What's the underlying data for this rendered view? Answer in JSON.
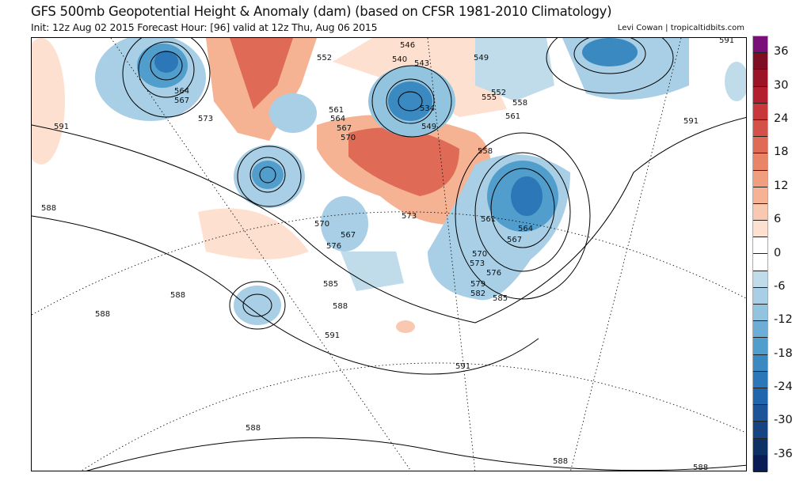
{
  "header": {
    "title": "GFS 500mb Geopotential Height & Anomaly (dam) (based on CFSR 1981-2010 Climatology)",
    "subtitle": "Init: 12z Aug 02 2015   Forecast Hour: [96]   valid at 12z Thu, Aug 06 2015",
    "credit": "Levi Cowan | tropicaltidbits.com"
  },
  "colorbar": {
    "labels": [
      "36",
      "30",
      "24",
      "18",
      "12",
      "6",
      "0",
      "-6",
      "-12",
      "-18",
      "-24",
      "-30",
      "-36"
    ],
    "colors": [
      "#7a0f7a",
      "#7f0d24",
      "#9b1427",
      "#b41f2e",
      "#c8383a",
      "#d4514a",
      "#df6b57",
      "#e98467",
      "#f09e7d",
      "#f5b394",
      "#f8c8b0",
      "#fde0d0",
      "#ffffff",
      "#ffffff",
      "#c0dbea",
      "#a8cfe5",
      "#92c4df",
      "#6eadd5",
      "#519dcb",
      "#3a89c0",
      "#2b77b8",
      "#2166ac",
      "#1c549a",
      "#164381",
      "#0e3166",
      "#091c55"
    ]
  },
  "contour_labels": [
    "564",
    "567",
    "573",
    "591",
    "588",
    "588",
    "588",
    "588",
    "552",
    "546",
    "540",
    "543",
    "534",
    "549",
    "549",
    "552",
    "555",
    "558",
    "561",
    "561",
    "564",
    "567",
    "570",
    "558",
    "591",
    "591",
    "570",
    "567",
    "576",
    "573",
    "561",
    "567",
    "564",
    "570",
    "573",
    "576",
    "579",
    "582",
    "585",
    "585",
    "588",
    "591",
    "591",
    "588",
    "588"
  ]
}
